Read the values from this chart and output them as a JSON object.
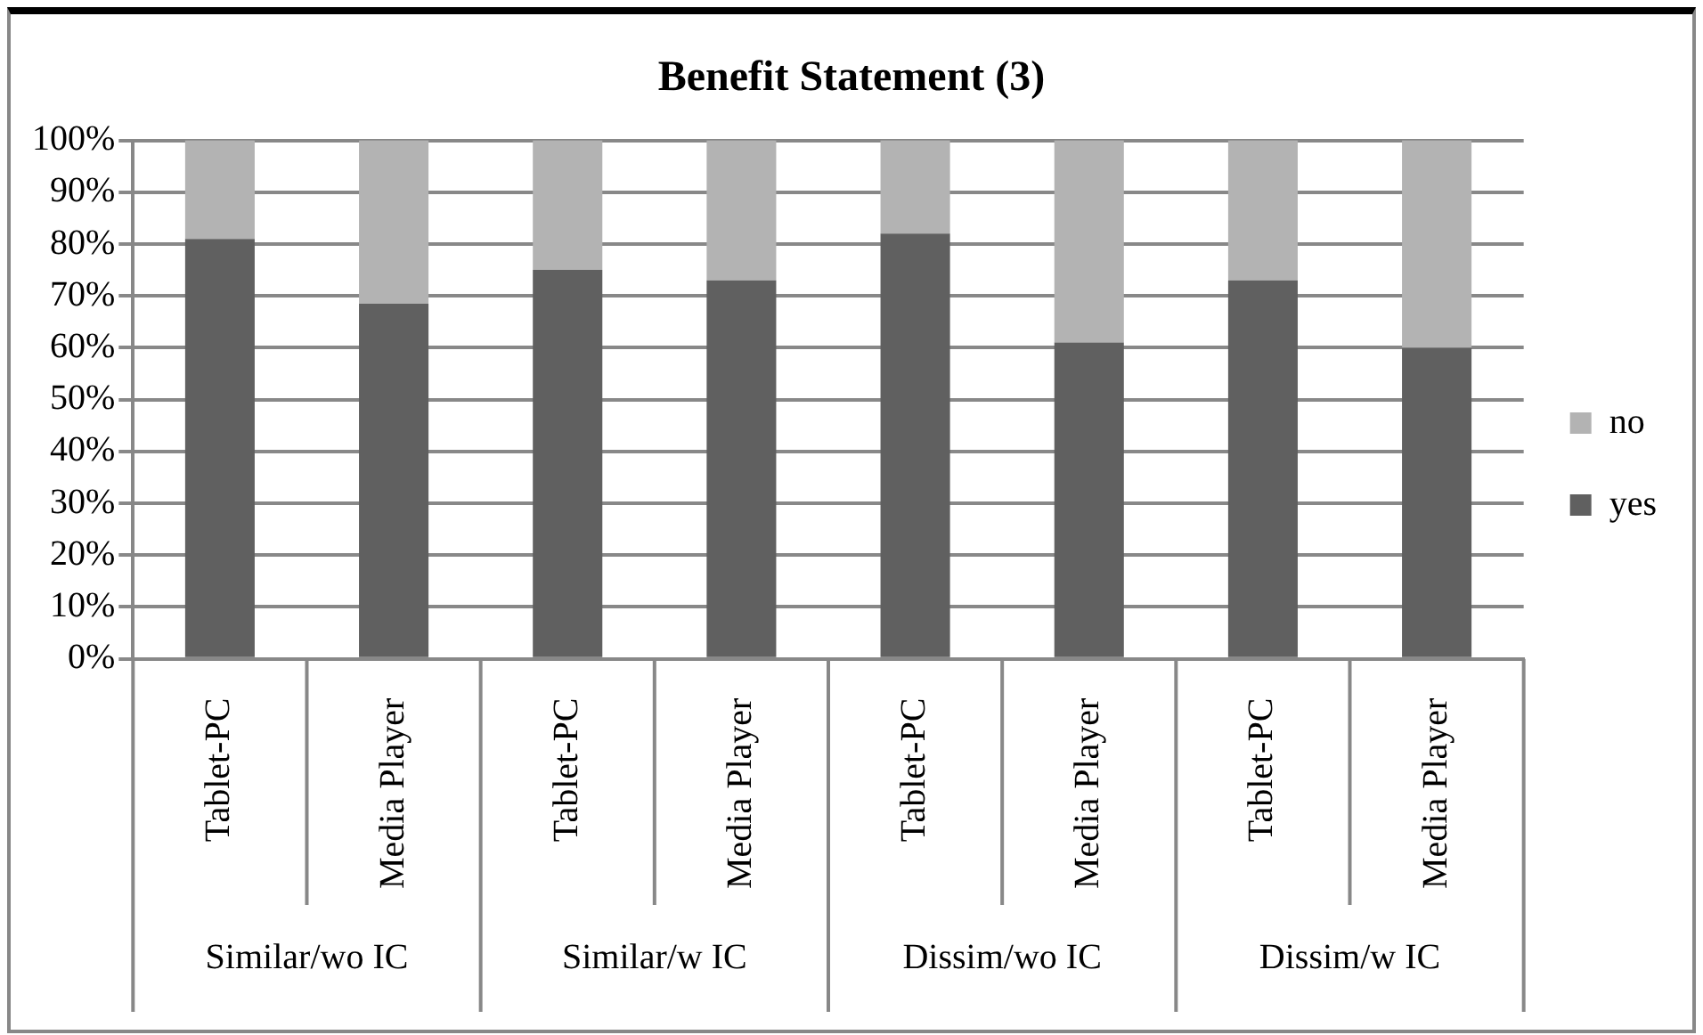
{
  "chart_data": {
    "type": "bar",
    "title": "Benefit Statement (3)",
    "stacked": true,
    "categories": [
      "Tablet-PC",
      "Media Player",
      "Tablet-PC",
      "Media Player",
      "Tablet-PC",
      "Media Player",
      "Tablet-PC",
      "Media Player"
    ],
    "annotations": [
      "Similar/wo IC",
      "Similar/w IC",
      "Dissim/wo IC",
      "Dissim/w IC"
    ],
    "series": [
      {
        "name": "yes",
        "color": "#606060",
        "values": [
          81,
          68.5,
          75,
          73,
          82,
          61,
          73,
          60
        ]
      },
      {
        "name": "no",
        "color": "#b3b3b3",
        "values": [
          19,
          31.5,
          25,
          27,
          18,
          39,
          27,
          40
        ]
      }
    ],
    "ylim": [
      0,
      100
    ],
    "yticks": [
      {
        "value": 0,
        "label": "0%"
      },
      {
        "value": 10,
        "label": "10%"
      },
      {
        "value": 20,
        "label": "20%"
      },
      {
        "value": 30,
        "label": "30%"
      },
      {
        "value": 40,
        "label": "40%"
      },
      {
        "value": 50,
        "label": "50%"
      },
      {
        "value": 60,
        "label": "60%"
      },
      {
        "value": 70,
        "label": "70%"
      },
      {
        "value": 80,
        "label": "80%"
      },
      {
        "value": 90,
        "label": "90%"
      },
      {
        "value": 100,
        "label": "100%"
      }
    ],
    "grid": "y",
    "legend": "right"
  }
}
